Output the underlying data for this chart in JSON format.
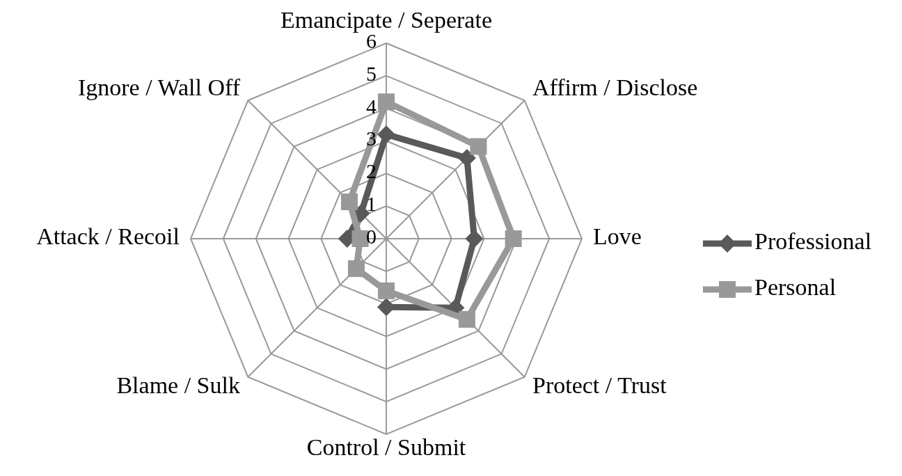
{
  "chart_data": {
    "type": "radar",
    "categories": [
      "Emancipate / Seperate",
      "Affirm / Disclose",
      "Love",
      "Protect / Trust",
      "Control / Submit",
      "Blame / Sulk",
      "Attack / Recoil",
      "Ignore / Wall Off"
    ],
    "series": [
      {
        "name": "Professional",
        "color": "#595959",
        "marker": "diamond",
        "values": [
          3.2,
          3.5,
          2.7,
          3.0,
          2.1,
          null,
          1.2,
          1.1
        ]
      },
      {
        "name": "Personal",
        "color": "#999999",
        "marker": "square",
        "values": [
          4.2,
          4.0,
          3.9,
          3.5,
          1.6,
          1.3,
          0.8,
          1.6
        ]
      }
    ],
    "ylim": [
      0,
      6
    ],
    "yticks": [
      0,
      1,
      2,
      3,
      4,
      5,
      6
    ],
    "grid": true,
    "legend": "right"
  }
}
